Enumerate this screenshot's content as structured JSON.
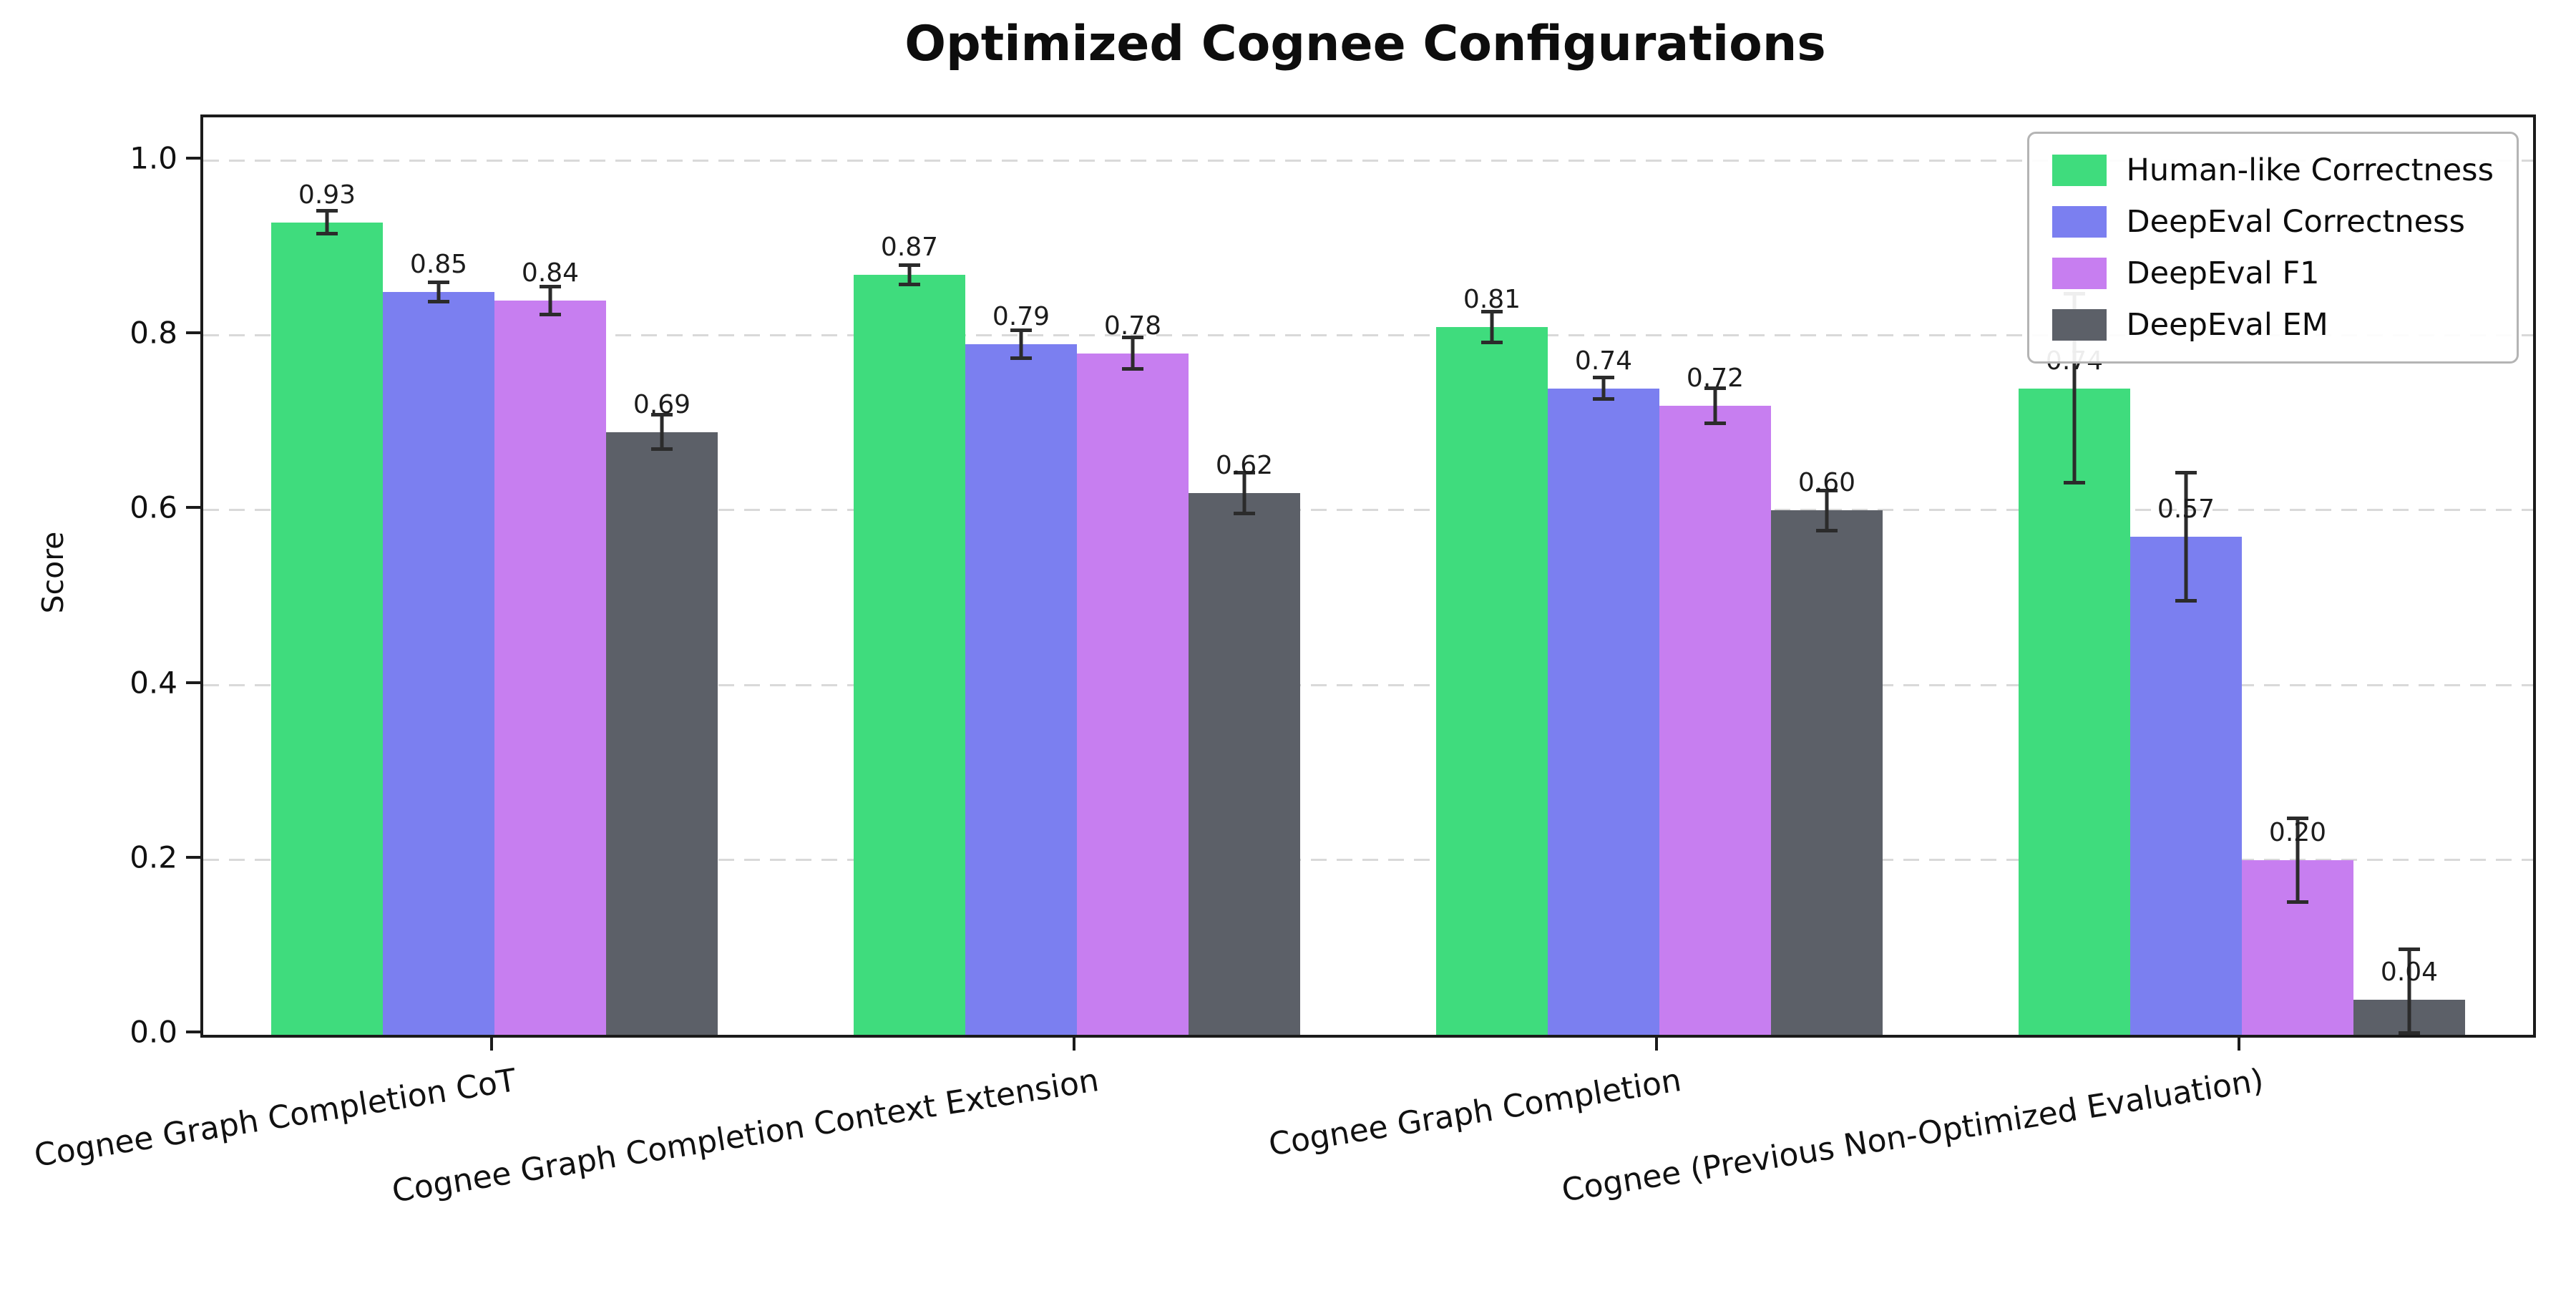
{
  "chart_data": {
    "type": "bar",
    "title": "Optimized Cognee Configurations",
    "xlabel": "",
    "ylabel": "Score",
    "ylim": [
      0,
      1.05
    ],
    "yticks": [
      0.0,
      0.2,
      0.4,
      0.6,
      0.8,
      1.0
    ],
    "grid": {
      "horizontal": true,
      "style": "dashed",
      "color": "#d9d9d9"
    },
    "legend_position": "upper right",
    "axis_color": "#1b1b1b",
    "error_bar_color": "#2b2b2b",
    "value_label_decimals": 2,
    "categories": [
      "Cognee Graph Completion CoT",
      "Cognee Graph Completion Context Extension",
      "Cognee Graph Completion",
      "Cognee (Previous Non-Optimized Evaluation)"
    ],
    "series": [
      {
        "name": "Human-like Correctness",
        "color": "#3fdc7d",
        "values": [
          0.93,
          0.87,
          0.81,
          0.74
        ],
        "errors": [
          0.015,
          0.013,
          0.02,
          0.11
        ]
      },
      {
        "name": "DeepEval Correctness",
        "color": "#7b7ff0",
        "values": [
          0.85,
          0.79,
          0.74,
          0.57
        ],
        "errors": [
          0.013,
          0.018,
          0.014,
          0.075
        ]
      },
      {
        "name": "DeepEval F1",
        "color": "#c77ef0",
        "values": [
          0.84,
          0.78,
          0.72,
          0.2
        ],
        "errors": [
          0.018,
          0.02,
          0.022,
          0.05
        ]
      },
      {
        "name": "DeepEval EM",
        "color": "#5c6068",
        "values": [
          0.69,
          0.62,
          0.6,
          0.04
        ],
        "errors": [
          0.022,
          0.025,
          0.025,
          0.06
        ]
      }
    ]
  }
}
